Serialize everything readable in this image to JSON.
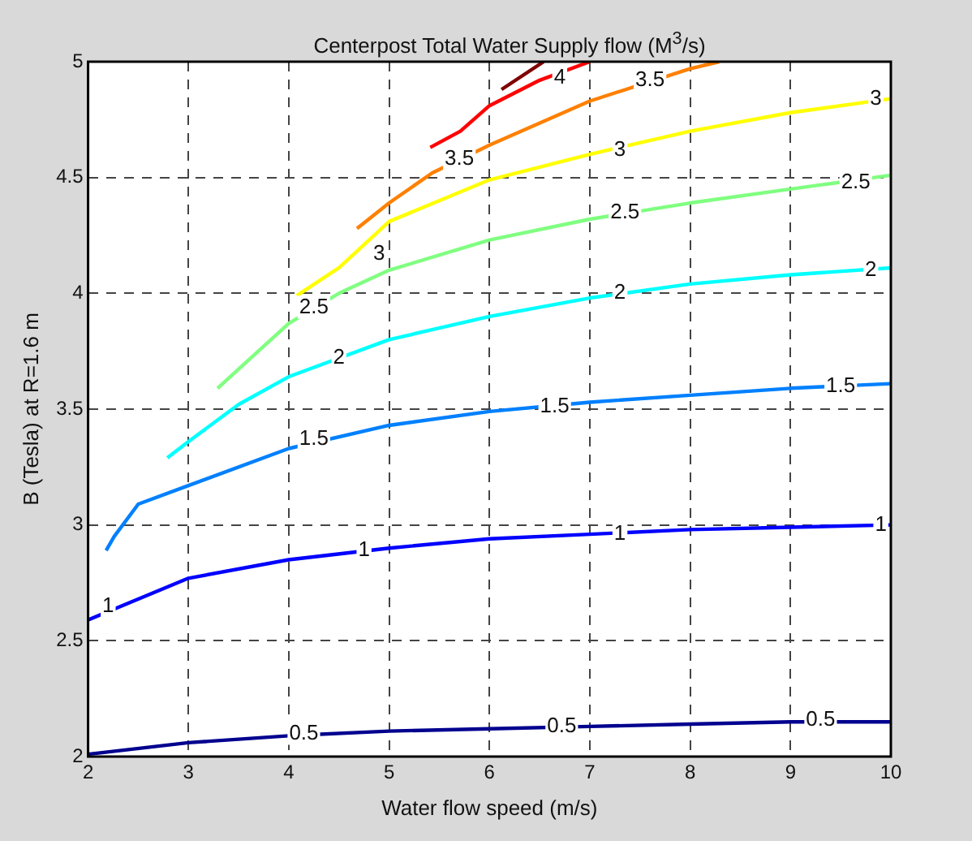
{
  "chart_data": {
    "type": "line",
    "title": "Centerpost Total Water Supply flow (M$^{3}$/s)",
    "xlabel": "Water flow speed (m/s)",
    "ylabel": "B (Tesla) at R=1.6 m",
    "xlim": [
      2,
      10
    ],
    "xticks": [
      2,
      3,
      4,
      5,
      6,
      7,
      8,
      9,
      10
    ],
    "ylim": [
      2,
      5
    ],
    "yticks": [
      2,
      2.5,
      3,
      3.5,
      4,
      4.5,
      5
    ],
    "grid": true,
    "legend": false,
    "marker": "none",
    "line_style": "solid",
    "series": [
      {
        "color": "#00008f",
        "x": [
          2,
          3,
          4,
          5,
          6,
          7,
          8,
          9,
          10
        ],
        "values": [
          2.01,
          2.06,
          2.09,
          2.11,
          2.12,
          2.13,
          2.14,
          2.15,
          2.15
        ]
      },
      {
        "color": "#0000ff",
        "x": [
          2,
          3,
          4,
          5,
          6,
          7,
          8,
          9,
          10
        ],
        "values": [
          2.59,
          2.77,
          2.85,
          2.9,
          2.94,
          2.96,
          2.98,
          2.99,
          3.0
        ]
      },
      {
        "color": "#0080ff",
        "x": [
          2.18,
          2.26,
          2.5,
          3,
          4,
          5,
          6,
          7,
          8,
          9,
          10
        ],
        "values": [
          2.89,
          2.95,
          3.09,
          3.17,
          3.33,
          3.43,
          3.49,
          3.53,
          3.56,
          3.59,
          3.61
        ]
      },
      {
        "color": "#00ffff",
        "x": [
          2.79,
          3,
          3.5,
          4,
          5,
          6,
          7,
          8,
          9,
          10
        ],
        "values": [
          3.29,
          3.36,
          3.52,
          3.64,
          3.8,
          3.9,
          3.98,
          4.04,
          4.08,
          4.11
        ]
      },
      {
        "color": "#80ff80",
        "x": [
          3.29,
          4,
          4.5,
          5,
          6,
          7,
          8,
          9,
          10
        ],
        "values": [
          3.59,
          3.87,
          4.0,
          4.1,
          4.23,
          4.32,
          4.39,
          4.45,
          4.51
        ]
      },
      {
        "color": "#ffff00",
        "x": [
          4.08,
          4.5,
          5,
          6,
          7,
          8,
          9,
          10
        ],
        "values": [
          3.99,
          4.11,
          4.31,
          4.49,
          4.6,
          4.7,
          4.78,
          4.84
        ]
      },
      {
        "color": "#ff8000",
        "x": [
          4.68,
          5,
          5.43,
          6,
          7,
          8,
          8.29
        ],
        "values": [
          4.28,
          4.39,
          4.52,
          4.64,
          4.83,
          4.97,
          5.0
        ]
      },
      {
        "color": "#ff0000",
        "x": [
          5.41,
          5.71,
          6,
          6.5,
          7
        ],
        "values": [
          4.63,
          4.7,
          4.81,
          4.92,
          5.0
        ]
      },
      {
        "color": "#800000",
        "x": [
          6.12,
          6.54
        ],
        "values": [
          4.88,
          5.0
        ]
      }
    ],
    "annotations": [
      {
        "text": "0.5",
        "x": 4.15,
        "y": 2.1
      },
      {
        "text": "0.5",
        "x": 6.72,
        "y": 2.13
      },
      {
        "text": "0.5",
        "x": 9.3,
        "y": 2.16
      },
      {
        "text": "1",
        "x": 2.2,
        "y": 2.65
      },
      {
        "text": "1",
        "x": 4.75,
        "y": 2.89
      },
      {
        "text": "1",
        "x": 7.3,
        "y": 2.96
      },
      {
        "text": "1",
        "x": 9.9,
        "y": 3.0
      },
      {
        "text": "1.5",
        "x": 4.25,
        "y": 3.37
      },
      {
        "text": "1.5",
        "x": 6.65,
        "y": 3.51
      },
      {
        "text": "1.5",
        "x": 9.5,
        "y": 3.6
      },
      {
        "text": "2",
        "x": 4.5,
        "y": 3.72
      },
      {
        "text": "2",
        "x": 7.3,
        "y": 4.0
      },
      {
        "text": "2",
        "x": 9.8,
        "y": 4.1
      },
      {
        "text": "2.5",
        "x": 4.25,
        "y": 3.94
      },
      {
        "text": "2.5",
        "x": 7.35,
        "y": 4.35
      },
      {
        "text": "2.5",
        "x": 9.65,
        "y": 4.48
      },
      {
        "text": "3",
        "x": 4.9,
        "y": 4.17
      },
      {
        "text": "3",
        "x": 7.3,
        "y": 4.62
      },
      {
        "text": "3",
        "x": 9.85,
        "y": 4.84
      },
      {
        "text": "3.5",
        "x": 5.7,
        "y": 4.58
      },
      {
        "text": "3.5",
        "x": 7.6,
        "y": 4.92
      },
      {
        "text": "4",
        "x": 6.7,
        "y": 4.93
      }
    ]
  }
}
